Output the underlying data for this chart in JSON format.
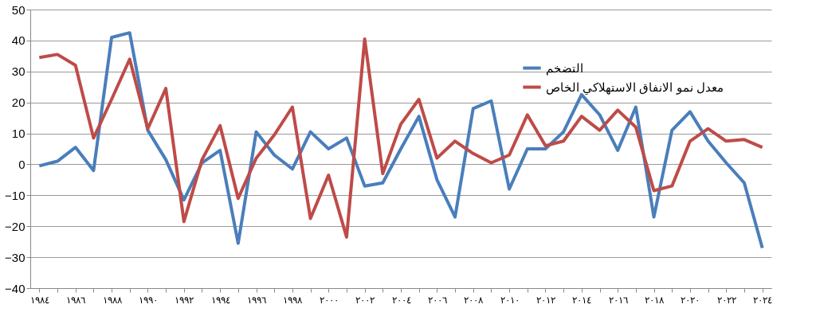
{
  "chart_data": {
    "type": "line",
    "categories": [
      "١٩٨٤",
      null,
      "١٩٨٦",
      null,
      "١٩٨٨",
      null,
      "١٩٩٠",
      null,
      "١٩٩٢",
      null,
      "١٩٩٤",
      null,
      "١٩٩٦",
      null,
      "١٩٩٨",
      null,
      "٢٠٠٠",
      null,
      "٢٠٠٢",
      null,
      "٢٠٠٤",
      null,
      "٢٠٠٦",
      null,
      "٢٠٠٨",
      null,
      "٢٠١٠",
      null,
      "٢٠١٢",
      null,
      "٢٠١٤",
      null,
      "٢٠١٦",
      null,
      "٢٠١٨",
      null,
      "٢٠٢٠",
      null,
      "٢٠٢٢",
      null,
      "٢٠٢٤"
    ],
    "series": [
      {
        "name": "التضخم",
        "color": "#4a7ebb",
        "values": [
          -0.5,
          1,
          5.5,
          -2,
          41,
          42.5,
          11,
          1.5,
          -11.5,
          0.5,
          4.5,
          -25.5,
          10.5,
          3,
          -1.5,
          10.5,
          5,
          8.5,
          -7,
          -6,
          5,
          15.5,
          -5,
          -17,
          18,
          20.5,
          -8,
          5,
          5,
          10.5,
          22.5,
          16,
          4.5,
          18.5,
          -17,
          11,
          17,
          7.5,
          0.5,
          -6,
          -27
        ]
      },
      {
        "name": "معدل نمو الانفاق الاستهلاكي الخاص",
        "color": "#be4b48",
        "values": [
          34.5,
          35.5,
          32,
          8.5,
          21,
          34,
          11.5,
          24.5,
          -18.5,
          1.5,
          12.5,
          -11,
          2,
          9.5,
          18.5,
          -17.5,
          -3.5,
          -23.5,
          40.5,
          -3,
          13,
          21,
          2,
          7.5,
          3.5,
          0.5,
          3,
          16,
          6,
          7.5,
          15.5,
          11,
          17.5,
          12,
          -8.5,
          -7,
          7.5,
          11.5,
          7.5,
          8,
          5.5
        ]
      }
    ],
    "ylim": [
      -40,
      50
    ],
    "yticks": [
      -40,
      -30,
      -20,
      -10,
      0,
      10,
      20,
      30,
      40,
      50
    ],
    "grid": "y",
    "legend": "top right"
  }
}
